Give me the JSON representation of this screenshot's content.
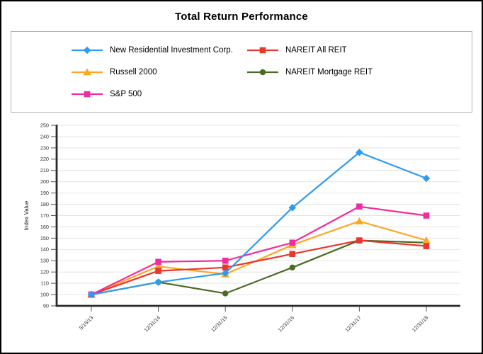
{
  "title": "Total Return Performance",
  "chart_data": {
    "type": "line",
    "title": "Total Return Performance",
    "xlabel": "",
    "ylabel": "Index Value",
    "ylim": [
      90,
      250
    ],
    "y_tick_step": 10,
    "grid": true,
    "legend_position": "top-box-two-columns",
    "axis_color": "#2b2b2b",
    "gridline_color": "#e4e4e4",
    "categories": [
      "5/16/13",
      "12/31/14",
      "12/31/15",
      "12/31/16",
      "12/31/17",
      "12/31/18"
    ],
    "series": [
      {
        "name": "New Residential Investment Corp.",
        "color": "#2e9bf0",
        "marker": "diamond",
        "values": [
          100,
          111,
          119,
          177,
          226,
          203
        ]
      },
      {
        "name": "NAREIT All REIT",
        "color": "#e8372d",
        "marker": "square",
        "values": [
          100,
          121,
          124,
          136,
          148,
          143
        ]
      },
      {
        "name": "Russell 2000",
        "color": "#fca827",
        "marker": "triangle",
        "values": [
          100,
          125,
          118,
          144,
          165,
          148
        ]
      },
      {
        "name": "NAREIT Mortgage REIT",
        "color": "#4c6b22",
        "marker": "circle",
        "values": [
          100,
          111,
          101,
          124,
          148,
          146
        ]
      },
      {
        "name": "S&P 500",
        "color": "#f02da0",
        "marker": "square",
        "values": [
          100,
          129,
          130,
          146,
          178,
          170
        ]
      }
    ]
  }
}
